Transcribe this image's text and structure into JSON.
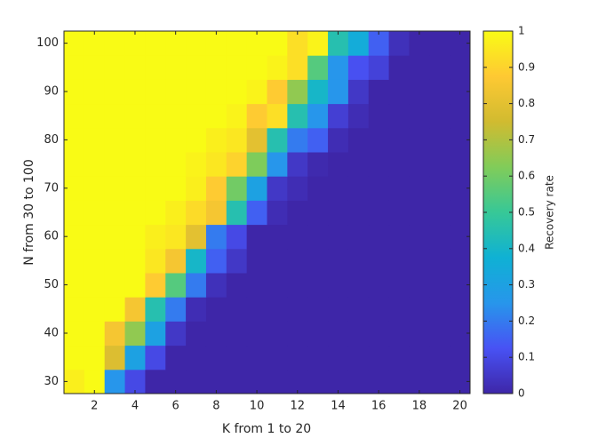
{
  "chart_data": {
    "type": "heatmap",
    "x_label": "K from 1 to 20",
    "y_label": "N from 30 to 100",
    "colorbar_label": "Recovery rate",
    "x": [
      1,
      2,
      3,
      4,
      5,
      6,
      7,
      8,
      9,
      10,
      11,
      12,
      13,
      14,
      15,
      16,
      17,
      18,
      19,
      20
    ],
    "y": [
      30,
      35,
      40,
      45,
      50,
      55,
      60,
      65,
      70,
      75,
      80,
      85,
      90,
      95,
      100
    ],
    "values": [
      [
        0.97,
        1,
        0.25,
        0.1,
        0,
        0,
        0,
        0,
        0,
        0,
        0,
        0,
        0,
        0,
        0,
        0,
        0,
        0,
        0,
        0
      ],
      [
        1,
        1,
        0.78,
        0.3,
        0.1,
        0,
        0,
        0,
        0,
        0,
        0,
        0,
        0,
        0,
        0,
        0,
        0,
        0,
        0,
        0
      ],
      [
        1,
        1,
        0.85,
        0.65,
        0.3,
        0.05,
        0,
        0,
        0,
        0,
        0,
        0,
        0,
        0,
        0,
        0,
        0,
        0,
        0,
        0
      ],
      [
        1,
        1,
        1,
        0.85,
        0.45,
        0.2,
        0.02,
        0,
        0,
        0,
        0,
        0,
        0,
        0,
        0,
        0,
        0,
        0,
        0,
        0
      ],
      [
        1,
        1,
        1,
        1,
        0.88,
        0.55,
        0.2,
        0.03,
        0,
        0,
        0,
        0,
        0,
        0,
        0,
        0,
        0,
        0,
        0,
        0
      ],
      [
        1,
        1,
        1,
        1,
        0.95,
        0.85,
        0.4,
        0.15,
        0.05,
        0,
        0,
        0,
        0,
        0,
        0,
        0,
        0,
        0,
        0,
        0
      ],
      [
        1,
        1,
        1,
        1,
        0.97,
        0.95,
        0.8,
        0.2,
        0.1,
        0,
        0,
        0,
        0,
        0,
        0,
        0,
        0,
        0,
        0,
        0
      ],
      [
        1,
        1,
        1,
        1,
        1,
        0.97,
        0.92,
        0.85,
        0.45,
        0.15,
        0.02,
        0,
        0,
        0,
        0,
        0,
        0,
        0,
        0,
        0
      ],
      [
        1,
        1,
        1,
        1,
        1,
        1,
        0.97,
        0.88,
        0.6,
        0.3,
        0.05,
        0.02,
        0,
        0,
        0,
        0,
        0,
        0,
        0,
        0
      ],
      [
        1,
        1,
        1,
        1,
        1,
        1,
        0.98,
        0.95,
        0.9,
        0.62,
        0.25,
        0.05,
        0.01,
        0,
        0,
        0,
        0,
        0,
        0,
        0
      ],
      [
        1,
        1,
        1,
        1,
        1,
        1,
        1,
        0.97,
        0.95,
        0.8,
        0.45,
        0.2,
        0.15,
        0.02,
        0,
        0,
        0,
        0,
        0,
        0
      ],
      [
        1,
        1,
        1,
        1,
        1,
        1,
        1,
        1,
        0.98,
        0.88,
        0.93,
        0.45,
        0.25,
        0.07,
        0.02,
        0,
        0,
        0,
        0,
        0
      ],
      [
        1,
        1,
        1,
        1,
        1,
        1,
        1,
        1,
        1,
        0.98,
        0.88,
        0.65,
        0.4,
        0.25,
        0.05,
        0,
        0,
        0,
        0,
        0
      ],
      [
        1,
        1,
        1,
        1,
        1,
        1,
        1,
        1,
        1,
        1,
        0.98,
        0.93,
        0.55,
        0.25,
        0.12,
        0.08,
        0,
        0,
        0,
        0
      ],
      [
        1,
        1,
        1,
        1,
        1,
        1,
        1,
        1,
        1,
        1,
        1,
        0.93,
        0.98,
        0.45,
        0.35,
        0.15,
        0.03,
        0,
        0,
        0
      ]
    ],
    "xlim": [
      0.5,
      20.5
    ],
    "ylim": [
      27.5,
      102.5
    ],
    "xticks": [
      2,
      4,
      6,
      8,
      10,
      12,
      14,
      16,
      18,
      20
    ],
    "yticks": [
      30,
      40,
      50,
      60,
      70,
      80,
      90,
      100
    ],
    "clim": [
      0,
      1
    ],
    "cticks": [
      0,
      0.1,
      0.2,
      0.3,
      0.4,
      0.5,
      0.6,
      0.7,
      0.8,
      0.9,
      1
    ],
    "colormap": [
      "#3e26a8",
      "#4852f4",
      "#2796eb",
      "#0fb1d4",
      "#37c897",
      "#81cc59",
      "#d1bb30",
      "#fec933",
      "#f9fb15"
    ]
  }
}
